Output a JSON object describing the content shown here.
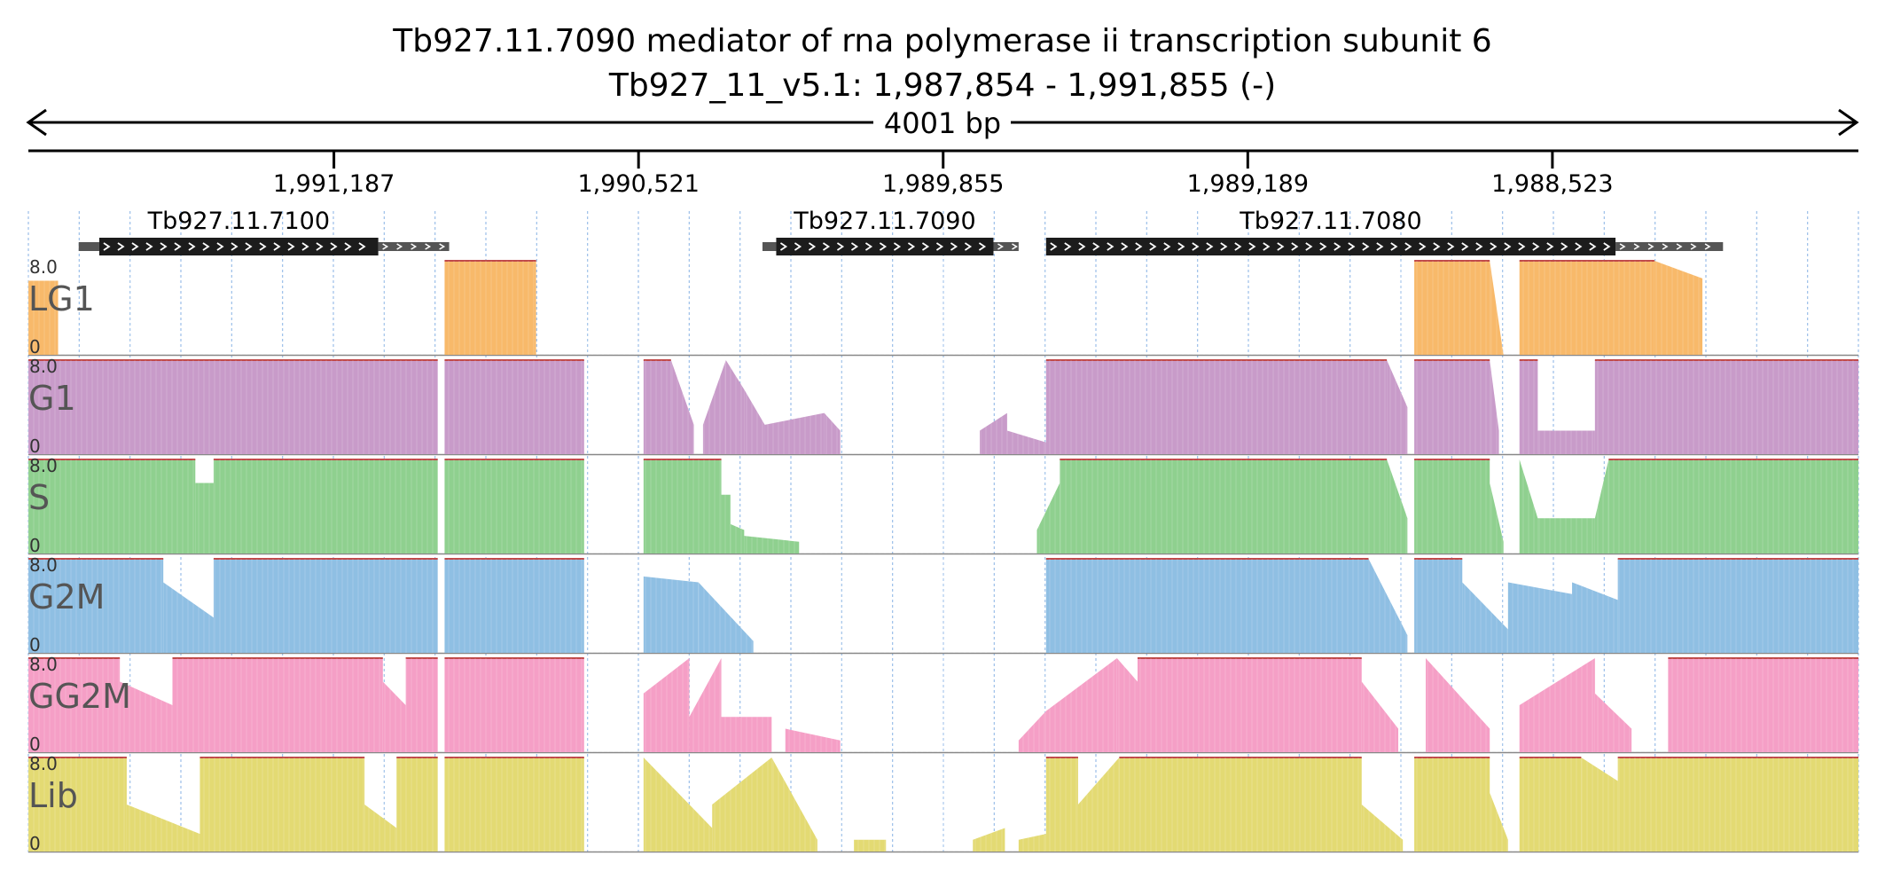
{
  "header": {
    "title": "Tb927.11.7090  mediator of rna polymerase ii transcription subunit 6",
    "subtitle": "Tb927_11_v5.1: 1,987,854 - 1,991,855 (-)",
    "length_label": "4001 bp"
  },
  "colors": {
    "LG1": "#f8b96a",
    "G1": "#c89bc9",
    "S": "#8fd08f",
    "G2M": "#8fbfe3",
    "GG2M": "#f59fc6",
    "Lib": "#e3da73",
    "gene_body": "#1c1c1c",
    "utr": "#555555",
    "top_line": "#c04a4a",
    "grid": "#9bbfe8"
  },
  "chart_data": {
    "type": "area",
    "region": {
      "chrom": "Tb927_11_v5.1",
      "start": 1987854,
      "end": 1991855,
      "strand": "-"
    },
    "x_axis": {
      "reversed": true,
      "xlim": [
        1991855,
        1987854
      ],
      "ticks": [
        "1,991,187",
        "1,990,521",
        "1,989,855",
        "1,989,189",
        "1,988,523"
      ]
    },
    "ylim": [
      0,
      8.0
    ],
    "y_labels": {
      "max": "8.0",
      "min": "0"
    },
    "genes": [
      {
        "name": "Tb927.11.7100",
        "utr5_start": 1991745,
        "cds_start": 1991700,
        "cds_end": 1991090,
        "utr3_end": 1990935
      },
      {
        "name": "Tb927.11.7090",
        "cds_start": 1990220,
        "cds_end": 1989745,
        "utr3_end": 1989690,
        "utr5_start": 1990250
      },
      {
        "name": "Tb927.11.7080",
        "cds_start": 1989630,
        "cds_end": 1988385,
        "utr3_end": 1988150
      }
    ],
    "tracks": [
      {
        "name": "LG1",
        "segments": [
          {
            "x": [
              1991855,
              1991790
            ],
            "y": [
              6.3,
              6.3
            ]
          },
          {
            "x": [
              1990945,
              1990745
            ],
            "y": [
              8,
              8
            ]
          },
          {
            "x": [
              1988825,
              1988660
            ],
            "y": [
              8,
              8
            ]
          },
          {
            "x": [
              1988660,
              1988630
            ],
            "y": [
              8,
              0
            ]
          },
          {
            "x": [
              1988595,
              1988300
            ],
            "y": [
              8,
              8
            ]
          },
          {
            "x": [
              1988300,
              1988195
            ],
            "y": [
              8,
              6.5
            ]
          }
        ]
      },
      {
        "name": "G1",
        "segments": [
          {
            "x": [
              1991855,
              1990960
            ],
            "y": [
              8,
              8
            ]
          },
          {
            "x": [
              1990945,
              1990640
            ],
            "y": [
              8,
              8
            ]
          },
          {
            "x": [
              1990510,
              1990450
            ],
            "y": [
              8,
              8
            ]
          },
          {
            "x": [
              1990450,
              1990400
            ],
            "y": [
              8,
              2.5
            ]
          },
          {
            "x": [
              1990380,
              1990330
            ],
            "y": [
              2.5,
              8
            ]
          },
          {
            "x": [
              1990330,
              1990290
            ],
            "y": [
              8,
              5.5
            ]
          },
          {
            "x": [
              1990290,
              1990245
            ],
            "y": [
              5.5,
              2.5
            ]
          },
          {
            "x": [
              1990245,
              1990115
            ],
            "y": [
              2.5,
              3.5
            ]
          },
          {
            "x": [
              1990115,
              1990080
            ],
            "y": [
              3.5,
              2.0
            ]
          },
          {
            "x": [
              1989775,
              1989715
            ],
            "y": [
              2.0,
              3.5
            ]
          },
          {
            "x": [
              1989715,
              1989630
            ],
            "y": [
              2.0,
              1.0
            ]
          },
          {
            "x": [
              1989630,
              1988885
            ],
            "y": [
              8,
              8
            ]
          },
          {
            "x": [
              1988885,
              1988840
            ],
            "y": [
              8,
              4.0
            ]
          },
          {
            "x": [
              1988825,
              1988660
            ],
            "y": [
              8,
              8
            ]
          },
          {
            "x": [
              1988660,
              1988640
            ],
            "y": [
              8,
              2.0
            ]
          },
          {
            "x": [
              1988595,
              1988555
            ],
            "y": [
              8,
              8
            ]
          },
          {
            "x": [
              1988555,
              1988430
            ],
            "y": [
              2.0,
              2.0
            ]
          },
          {
            "x": [
              1988430,
              1987854
            ],
            "y": [
              8,
              8
            ]
          }
        ]
      },
      {
        "name": "S",
        "segments": [
          {
            "x": [
              1991855,
              1991490
            ],
            "y": [
              8,
              8
            ]
          },
          {
            "x": [
              1991490,
              1991450
            ],
            "y": [
              6.0,
              6.0
            ]
          },
          {
            "x": [
              1991450,
              1990960
            ],
            "y": [
              8,
              8
            ]
          },
          {
            "x": [
              1990945,
              1990640
            ],
            "y": [
              8,
              8
            ]
          },
          {
            "x": [
              1990510,
              1990340
            ],
            "y": [
              8,
              8
            ]
          },
          {
            "x": [
              1990340,
              1990320
            ],
            "y": [
              5.0,
              5.0
            ]
          },
          {
            "x": [
              1990320,
              1990290
            ],
            "y": [
              2.5,
              2.0
            ]
          },
          {
            "x": [
              1990290,
              1990170
            ],
            "y": [
              1.5,
              1.0
            ]
          },
          {
            "x": [
              1989650,
              1989600
            ],
            "y": [
              2.0,
              6.0
            ]
          },
          {
            "x": [
              1989600,
              1988885
            ],
            "y": [
              8,
              8
            ]
          },
          {
            "x": [
              1988885,
              1988840
            ],
            "y": [
              8,
              3.0
            ]
          },
          {
            "x": [
              1988825,
              1988660
            ],
            "y": [
              8,
              8
            ]
          },
          {
            "x": [
              1988660,
              1988630
            ],
            "y": [
              6.0,
              1.0
            ]
          },
          {
            "x": [
              1988595,
              1988555
            ],
            "y": [
              8,
              3.0
            ]
          },
          {
            "x": [
              1988555,
              1988430
            ],
            "y": [
              3.0,
              3.0
            ]
          },
          {
            "x": [
              1988430,
              1988400
            ],
            "y": [
              3.0,
              8.0
            ]
          },
          {
            "x": [
              1988400,
              1987854
            ],
            "y": [
              8,
              8
            ]
          }
        ]
      },
      {
        "name": "G2M",
        "segments": [
          {
            "x": [
              1991855,
              1991560
            ],
            "y": [
              8,
              8
            ]
          },
          {
            "x": [
              1991560,
              1991450
            ],
            "y": [
              6.0,
              3.0
            ]
          },
          {
            "x": [
              1991450,
              1990960
            ],
            "y": [
              8,
              8
            ]
          },
          {
            "x": [
              1990945,
              1990640
            ],
            "y": [
              8,
              8
            ]
          },
          {
            "x": [
              1990510,
              1990390
            ],
            "y": [
              6.5,
              6.0
            ]
          },
          {
            "x": [
              1990390,
              1990270
            ],
            "y": [
              6.0,
              1.0
            ]
          },
          {
            "x": [
              1989630,
              1988925
            ],
            "y": [
              8,
              8
            ]
          },
          {
            "x": [
              1988925,
              1988840
            ],
            "y": [
              8,
              1.5
            ]
          },
          {
            "x": [
              1988825,
              1988720
            ],
            "y": [
              8,
              8
            ]
          },
          {
            "x": [
              1988720,
              1988620
            ],
            "y": [
              6.0,
              2.0
            ]
          },
          {
            "x": [
              1988620,
              1988480
            ],
            "y": [
              6.0,
              5.0
            ]
          },
          {
            "x": [
              1988480,
              1988380
            ],
            "y": [
              6.0,
              4.5
            ]
          },
          {
            "x": [
              1988380,
              1987854
            ],
            "y": [
              8,
              8
            ]
          }
        ]
      },
      {
        "name": "GG2M",
        "segments": [
          {
            "x": [
              1991855,
              1991655
            ],
            "y": [
              8,
              8
            ]
          },
          {
            "x": [
              1991655,
              1991540
            ],
            "y": [
              6.0,
              4.0
            ]
          },
          {
            "x": [
              1991540,
              1991080
            ],
            "y": [
              8,
              8
            ]
          },
          {
            "x": [
              1991080,
              1991030
            ],
            "y": [
              6.0,
              4.0
            ]
          },
          {
            "x": [
              1991030,
              1990960
            ],
            "y": [
              8,
              8
            ]
          },
          {
            "x": [
              1990945,
              1990640
            ],
            "y": [
              8,
              8
            ]
          },
          {
            "x": [
              1990510,
              1990410
            ],
            "y": [
              5.0,
              8.0
            ]
          },
          {
            "x": [
              1990410,
              1990340
            ],
            "y": [
              3.0,
              8.0
            ]
          },
          {
            "x": [
              1990340,
              1990230
            ],
            "y": [
              3.0,
              3.0
            ]
          },
          {
            "x": [
              1990200,
              1990080
            ],
            "y": [
              2.0,
              1.0
            ]
          },
          {
            "x": [
              1989690,
              1989630
            ],
            "y": [
              1.0,
              3.5
            ]
          },
          {
            "x": [
              1989630,
              1989475
            ],
            "y": [
              3.5,
              8.0
            ]
          },
          {
            "x": [
              1989475,
              1989430
            ],
            "y": [
              8.0,
              6.0
            ]
          },
          {
            "x": [
              1989430,
              1988940
            ],
            "y": [
              8,
              8
            ]
          },
          {
            "x": [
              1988940,
              1988860
            ],
            "y": [
              6.0,
              2.0
            ]
          },
          {
            "x": [
              1988800,
              1988660
            ],
            "y": [
              8.0,
              2.0
            ]
          },
          {
            "x": [
              1988595,
              1988430
            ],
            "y": [
              4.0,
              8.0
            ]
          },
          {
            "x": [
              1988430,
              1988350
            ],
            "y": [
              5.0,
              2.0
            ]
          },
          {
            "x": [
              1988270,
              1987854
            ],
            "y": [
              8,
              8
            ]
          }
        ]
      },
      {
        "name": "Lib",
        "segments": [
          {
            "x": [
              1991855,
              1991640
            ],
            "y": [
              8,
              8
            ]
          },
          {
            "x": [
              1991640,
              1991480
            ],
            "y": [
              4.0,
              1.5
            ]
          },
          {
            "x": [
              1991480,
              1991120
            ],
            "y": [
              8,
              8
            ]
          },
          {
            "x": [
              1991120,
              1991050
            ],
            "y": [
              4.0,
              2.0
            ]
          },
          {
            "x": [
              1991050,
              1990960
            ],
            "y": [
              8,
              8
            ]
          },
          {
            "x": [
              1990945,
              1990640
            ],
            "y": [
              8,
              8
            ]
          },
          {
            "x": [
              1990510,
              1990360
            ],
            "y": [
              8.0,
              2.0
            ]
          },
          {
            "x": [
              1990360,
              1990230
            ],
            "y": [
              4.0,
              8.0
            ]
          },
          {
            "x": [
              1990230,
              1990130
            ],
            "y": [
              8.0,
              1.0
            ]
          },
          {
            "x": [
              1990050,
              1989980
            ],
            "y": [
              1.0,
              1.0
            ]
          },
          {
            "x": [
              1989790,
              1989720
            ],
            "y": [
              1.0,
              2.0
            ]
          },
          {
            "x": [
              1989690,
              1989630
            ],
            "y": [
              1.0,
              1.5
            ]
          },
          {
            "x": [
              1989630,
              1989560
            ],
            "y": [
              8.0,
              8.0
            ]
          },
          {
            "x": [
              1989560,
              1989470
            ],
            "y": [
              4.0,
              8.0
            ]
          },
          {
            "x": [
              1989470,
              1988940
            ],
            "y": [
              8,
              8
            ]
          },
          {
            "x": [
              1988940,
              1988850
            ],
            "y": [
              4.0,
              1.0
            ]
          },
          {
            "x": [
              1988825,
              1988660
            ],
            "y": [
              8,
              8
            ]
          },
          {
            "x": [
              1988660,
              1988620
            ],
            "y": [
              5.0,
              1.0
            ]
          },
          {
            "x": [
              1988595,
              1988460
            ],
            "y": [
              8,
              8
            ]
          },
          {
            "x": [
              1988460,
              1988380
            ],
            "y": [
              8,
              6.0
            ]
          },
          {
            "x": [
              1988380,
              1987854
            ],
            "y": [
              8,
              8
            ]
          }
        ]
      }
    ]
  }
}
